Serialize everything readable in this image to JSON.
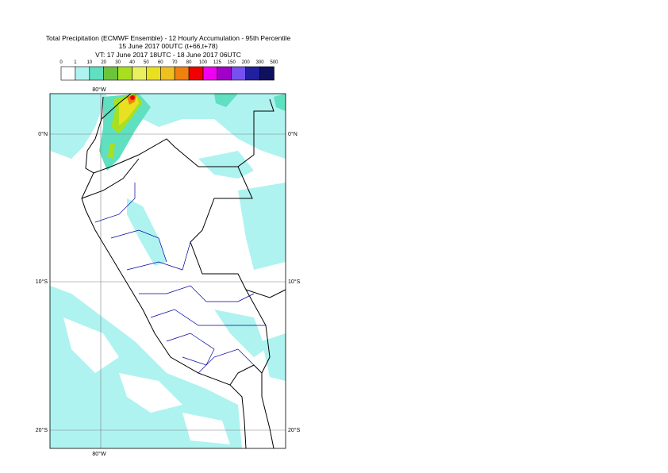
{
  "header": {
    "title": "Total Precipitation (ECMWF Ensemble) - 12 Hourly Accumulation - 95th Percentile",
    "subtitle": "15 June 2017 00UTC (t+66,t+78)",
    "valid_time": "VT: 17 June 2017 18UTC - 18 June 2017 06UTC"
  },
  "legend": {
    "labels": [
      0,
      1,
      10,
      20,
      30,
      40,
      50,
      60,
      70,
      80,
      100,
      125,
      150,
      200,
      300,
      500
    ],
    "colors": [
      "#ffffff",
      "#aef3f0",
      "#5fe0c0",
      "#6cc43c",
      "#a8e020",
      "#e8f060",
      "#e8e020",
      "#f0c020",
      "#f08010",
      "#f00000",
      "#f000f0",
      "#a000c8",
      "#7850f0",
      "#2020a0",
      "#101060"
    ]
  },
  "map": {
    "lon_labels": [
      "80°W"
    ],
    "lat_labels": [
      "0°N",
      "10°S",
      "20°S"
    ]
  }
}
